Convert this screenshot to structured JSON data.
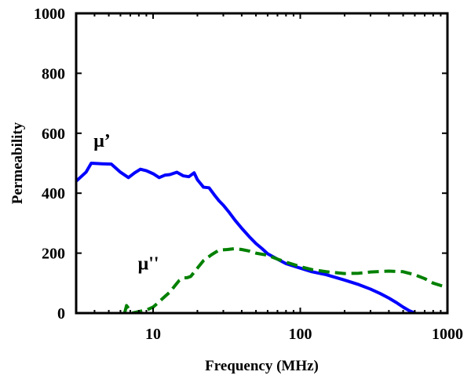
{
  "chart_data": {
    "type": "line",
    "title": "",
    "xlabel": "Frequency (MHz)",
    "ylabel": "Permeability",
    "xscale": "log",
    "xlim": [
      3,
      1000
    ],
    "ylim": [
      0,
      1000
    ],
    "xticks": [
      10,
      100,
      1000
    ],
    "xtick_labels": [
      "10",
      "100",
      "1000"
    ],
    "yticks": [
      0,
      200,
      400,
      600,
      800,
      1000
    ],
    "ytick_labels": [
      "0",
      "200",
      "400",
      "600",
      "800",
      "1000"
    ],
    "grid": false,
    "legend": "none",
    "series": [
      {
        "label": "μ’",
        "color": "#0000ff",
        "style": "solid",
        "x": [
          3,
          3.5,
          3.8,
          4.5,
          5.2,
          6,
          6.8,
          7.5,
          8.2,
          9,
          10,
          11,
          12,
          13,
          14.5,
          16,
          17.5,
          19,
          20,
          22,
          24,
          26,
          28,
          30,
          33,
          36,
          40,
          45,
          50,
          55,
          60,
          70,
          80,
          100,
          120,
          150,
          200,
          250,
          300,
          350,
          400,
          450,
          500,
          550,
          600
        ],
        "y": [
          440,
          470,
          500,
          498,
          497,
          470,
          452,
          468,
          480,
          475,
          465,
          452,
          460,
          462,
          470,
          458,
          455,
          468,
          445,
          420,
          418,
          395,
          375,
          360,
          335,
          310,
          283,
          255,
          232,
          215,
          198,
          180,
          165,
          150,
          138,
          128,
          110,
          95,
          80,
          65,
          50,
          35,
          20,
          8,
          0
        ]
      },
      {
        "label": "μ''",
        "color": "#008000",
        "style": "dashed",
        "x": [
          6.4,
          6.6,
          6.9,
          7.2,
          8,
          9,
          10,
          11,
          12,
          13,
          14,
          15,
          16,
          17,
          18,
          20,
          22,
          25,
          28,
          32,
          36,
          40,
          45,
          50,
          60,
          70,
          80,
          100,
          120,
          150,
          200,
          250,
          300,
          400,
          500,
          600,
          700,
          800,
          1000
        ],
        "y": [
          0,
          25,
          12,
          0,
          5,
          10,
          20,
          38,
          55,
          70,
          90,
          108,
          117,
          118,
          122,
          150,
          175,
          195,
          210,
          212,
          215,
          212,
          207,
          200,
          193,
          180,
          170,
          155,
          145,
          138,
          132,
          133,
          137,
          140,
          138,
          128,
          115,
          100,
          85
        ]
      }
    ],
    "annotations": [
      {
        "text": "μ’",
        "x": 4.5,
        "y": 555
      },
      {
        "text": "μ''",
        "x": 9.3,
        "y": 145
      }
    ]
  }
}
